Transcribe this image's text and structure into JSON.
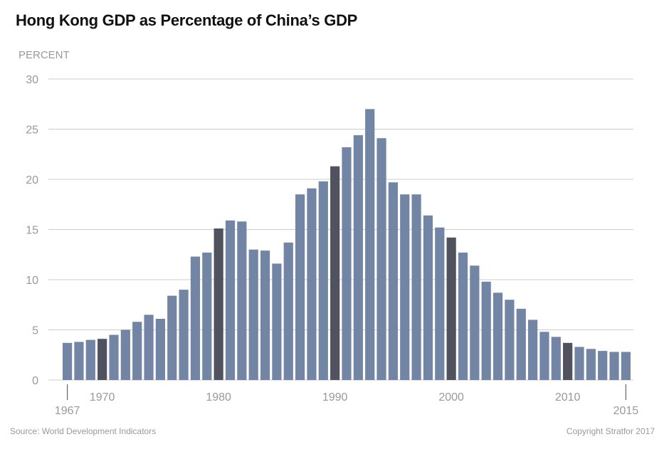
{
  "title": "Hong Kong GDP as Percentage of China’s GDP",
  "unit_label": "PERCENT",
  "source": "Source: World Development Indicators",
  "copyright": "Copyright Stratfor 2017",
  "colors": {
    "bar": "#7385a4",
    "highlight": "#50535f",
    "grid": "#cccccc",
    "text": "#999999",
    "title": "#111111"
  },
  "chart_data": {
    "type": "bar",
    "title": "Hong Kong GDP as Percentage of China’s GDP",
    "ylabel": "PERCENT",
    "ylim": [
      0,
      30
    ],
    "yticks": [
      "0",
      "5",
      "10",
      "15",
      "20",
      "25",
      "30"
    ],
    "xtick_labels_upper": [
      "1970",
      "1980",
      "1990",
      "2000",
      "2010"
    ],
    "xtick_labels_lower": [
      "1967",
      "2015"
    ],
    "grid": true,
    "highlighted_years": [
      1970,
      1980,
      1990,
      2000,
      2010
    ],
    "categories": [
      1967,
      1968,
      1969,
      1970,
      1971,
      1972,
      1973,
      1974,
      1975,
      1976,
      1977,
      1978,
      1979,
      1980,
      1981,
      1982,
      1983,
      1984,
      1985,
      1986,
      1987,
      1988,
      1989,
      1990,
      1991,
      1992,
      1993,
      1994,
      1995,
      1996,
      1997,
      1998,
      1999,
      2000,
      2001,
      2002,
      2003,
      2004,
      2005,
      2006,
      2007,
      2008,
      2009,
      2010,
      2011,
      2012,
      2013,
      2014,
      2015
    ],
    "values": [
      3.7,
      3.8,
      4.0,
      4.1,
      4.5,
      5.0,
      5.8,
      6.5,
      6.1,
      8.4,
      9.0,
      12.3,
      12.7,
      15.1,
      15.9,
      15.8,
      13.0,
      12.9,
      11.6,
      13.7,
      18.5,
      19.1,
      19.8,
      21.3,
      23.2,
      24.4,
      27.0,
      24.1,
      19.7,
      18.5,
      18.5,
      16.4,
      15.2,
      14.2,
      12.7,
      11.4,
      9.8,
      8.7,
      8.0,
      7.1,
      6.0,
      4.8,
      4.3,
      3.7,
      3.3,
      3.1,
      2.9,
      2.8,
      2.8
    ]
  }
}
